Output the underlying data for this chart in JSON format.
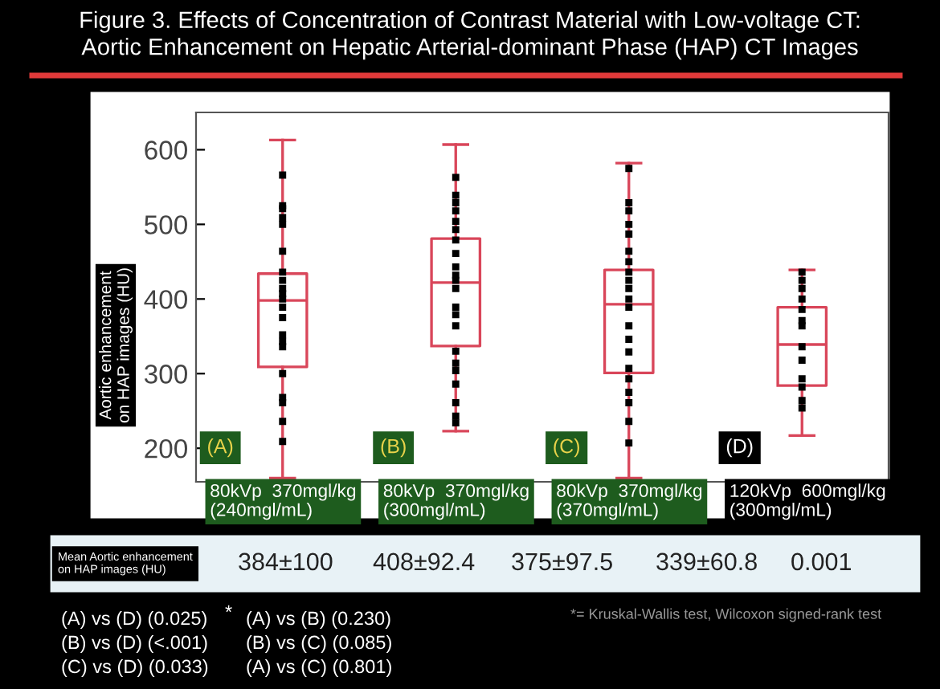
{
  "chart_data": {
    "type": "box",
    "title": "Figure 3. Effects of Concentration of Contrast Material with Low-voltage CT:\nAortic Enhancement on Hepatic Arterial-dominant Phase (HAP) CT Images",
    "ylabel": "Aortic enhancement\non HAP images (HU)",
    "categories": [
      "80kVp  370mgl/kg\n(240mgl/mL)",
      "80kVp  370mgl/kg\n(300mgl/mL)",
      "80kVp  370mgl/kg\n(370mgl/mL)",
      "120kVp  600mgl/kg\n(300mgl/mL)"
    ],
    "series": [
      {
        "color": "#d9465a",
        "boxes": [
          {
            "low": 160,
            "q1": 309,
            "median": 398,
            "q3": 434,
            "high": 613
          },
          {
            "low": 223,
            "q1": 337,
            "median": 422,
            "q3": 481,
            "high": 607
          },
          {
            "low": 160,
            "q1": 301,
            "median": 393,
            "q3": 439,
            "high": 582
          },
          {
            "low": 217,
            "q1": 284,
            "median": 339,
            "q3": 389,
            "high": 439
          }
        ]
      },
      {
        "type": "scatter",
        "color": "#000000",
        "x": [
          "80kVp  370mgl/kg\n(240mgl/mL)",
          "80kVp  370mgl/kg\n(240mgl/mL)",
          "80kVp  370mgl/kg\n(240mgl/mL)",
          "80kVp  370mgl/kg\n(240mgl/mL)",
          "80kVp  370mgl/kg\n(240mgl/mL)",
          "80kVp  370mgl/kg\n(240mgl/mL)",
          "80kVp  370mgl/kg\n(240mgl/mL)",
          "80kVp  370mgl/kg\n(240mgl/mL)",
          "80kVp  370mgl/kg\n(240mgl/mL)",
          "80kVp  370mgl/kg\n(240mgl/mL)",
          "80kVp  370mgl/kg\n(240mgl/mL)",
          "80kVp  370mgl/kg\n(240mgl/mL)",
          "80kVp  370mgl/kg\n(240mgl/mL)",
          "80kVp  370mgl/kg\n(240mgl/mL)",
          "80kVp  370mgl/kg\n(240mgl/mL)",
          "80kVp  370mgl/kg\n(240mgl/mL)",
          "80kVp  370mgl/kg\n(240mgl/mL)",
          "80kVp  370mgl/kg\n(240mgl/mL)",
          "80kVp  370mgl/kg\n(240mgl/mL)",
          "80kVp  370mgl/kg\n(240mgl/mL)",
          "80kVp  370mgl/kg\n(240mgl/mL)",
          "80kVp  370mgl/kg\n(300mgl/mL)",
          "80kVp  370mgl/kg\n(300mgl/mL)",
          "80kVp  370mgl/kg\n(300mgl/mL)",
          "80kVp  370mgl/kg\n(300mgl/mL)",
          "80kVp  370mgl/kg\n(300mgl/mL)",
          "80kVp  370mgl/kg\n(300mgl/mL)",
          "80kVp  370mgl/kg\n(300mgl/mL)",
          "80kVp  370mgl/kg\n(300mgl/mL)",
          "80kVp  370mgl/kg\n(300mgl/mL)",
          "80kVp  370mgl/kg\n(300mgl/mL)",
          "80kVp  370mgl/kg\n(300mgl/mL)",
          "80kVp  370mgl/kg\n(300mgl/mL)",
          "80kVp  370mgl/kg\n(300mgl/mL)",
          "80kVp  370mgl/kg\n(300mgl/mL)",
          "80kVp  370mgl/kg\n(300mgl/mL)",
          "80kVp  370mgl/kg\n(300mgl/mL)",
          "80kVp  370mgl/kg\n(300mgl/mL)",
          "80kVp  370mgl/kg\n(300mgl/mL)",
          "80kVp  370mgl/kg\n(300mgl/mL)",
          "80kVp  370mgl/kg\n(300mgl/mL)",
          "80kVp  370mgl/kg\n(300mgl/mL)",
          "80kVp  370mgl/kg\n(300mgl/mL)",
          "80kVp  370mgl/kg\n(370mgl/mL)",
          "80kVp  370mgl/kg\n(370mgl/mL)",
          "80kVp  370mgl/kg\n(370mgl/mL)",
          "80kVp  370mgl/kg\n(370mgl/mL)",
          "80kVp  370mgl/kg\n(370mgl/mL)",
          "80kVp  370mgl/kg\n(370mgl/mL)",
          "80kVp  370mgl/kg\n(370mgl/mL)",
          "80kVp  370mgl/kg\n(370mgl/mL)",
          "80kVp  370mgl/kg\n(370mgl/mL)",
          "80kVp  370mgl/kg\n(370mgl/mL)",
          "80kVp  370mgl/kg\n(370mgl/mL)",
          "80kVp  370mgl/kg\n(370mgl/mL)",
          "80kVp  370mgl/kg\n(370mgl/mL)",
          "80kVp  370mgl/kg\n(370mgl/mL)",
          "80kVp  370mgl/kg\n(370mgl/mL)",
          "80kVp  370mgl/kg\n(370mgl/mL)",
          "80kVp  370mgl/kg\n(370mgl/mL)",
          "80kVp  370mgl/kg\n(370mgl/mL)",
          "80kVp  370mgl/kg\n(370mgl/mL)",
          "80kVp  370mgl/kg\n(370mgl/mL)",
          "80kVp  370mgl/kg\n(370mgl/mL)",
          "120kVp  600mgl/kg\n(300mgl/mL)",
          "120kVp  600mgl/kg\n(300mgl/mL)",
          "120kVp  600mgl/kg\n(300mgl/mL)",
          "120kVp  600mgl/kg\n(300mgl/mL)",
          "120kVp  600mgl/kg\n(300mgl/mL)",
          "120kVp  600mgl/kg\n(300mgl/mL)",
          "120kVp  600mgl/kg\n(300mgl/mL)",
          "120kVp  600mgl/kg\n(300mgl/mL)",
          "120kVp  600mgl/kg\n(300mgl/mL)",
          "120kVp  600mgl/kg\n(300mgl/mL)",
          "120kVp  600mgl/kg\n(300mgl/mL)",
          "120kVp  600mgl/kg\n(300mgl/mL)",
          "120kVp  600mgl/kg\n(300mgl/mL)"
        ],
        "values": [
          566,
          525,
          521,
          509,
          500,
          464,
          436,
          425,
          414,
          407,
          400,
          389,
          375,
          352,
          343,
          336,
          300,
          268,
          261,
          236,
          209,
          563,
          539,
          529,
          518,
          504,
          493,
          479,
          461,
          443,
          432,
          425,
          414,
          389,
          379,
          364,
          330,
          314,
          304,
          286,
          261,
          243,
          234,
          575,
          529,
          518,
          500,
          487,
          464,
          450,
          436,
          425,
          414,
          400,
          389,
          364,
          346,
          329,
          307,
          293,
          275,
          261,
          236,
          207,
          436,
          425,
          414,
          400,
          386,
          371,
          364,
          336,
          318,
          293,
          282,
          264,
          254
        ]
      }
    ],
    "ylim": [
      155,
      650
    ],
    "yticks": [
      200,
      300,
      400,
      500,
      600
    ],
    "marker": "square",
    "grid": false,
    "annotations": [
      "(A)",
      "(B)",
      "(C)",
      "(D)",
      "Mean Aortic enhancement\non HAP images (HU)",
      "384±100",
      "408±92.4",
      "375±97.5",
      "339±60.8",
      "0.001",
      "(A) vs (D) (0.025)",
      "*",
      "(B) vs (D) (<.001)",
      "(C) vs (D) (0.033)",
      "(A) vs (B) (0.230)",
      "(B) vs (C) (0.085)",
      "(A) vs (C) (0.801)",
      "*= Kruskal-Wallis test, Wilcoxon signed-rank test"
    ]
  }
}
